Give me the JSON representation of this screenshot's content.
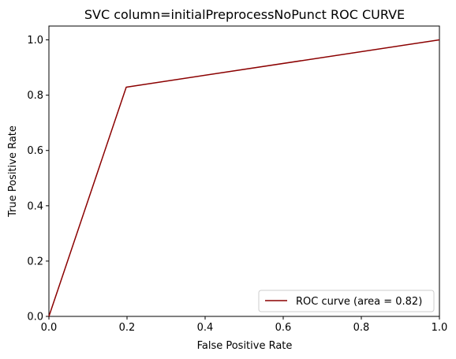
{
  "chart_data": {
    "type": "line",
    "title": "SVC column=initialPreprocessNoPunct ROC CURVE",
    "xlabel": "False Positive Rate",
    "ylabel": "True Positive Rate",
    "xlim": [
      0.0,
      1.0
    ],
    "ylim": [
      0.0,
      1.05
    ],
    "xticks": [
      0.0,
      0.2,
      0.4,
      0.6,
      0.8,
      1.0
    ],
    "xtick_labels": [
      "0.0",
      "0.2",
      "0.4",
      "0.6",
      "0.8",
      "1.0"
    ],
    "yticks": [
      0.0,
      0.2,
      0.4,
      0.6,
      0.8,
      1.0
    ],
    "ytick_labels": [
      "0.0",
      "0.2",
      "0.4",
      "0.6",
      "0.8",
      "1.0"
    ],
    "grid": false,
    "legend_position": "lower-right",
    "series": [
      {
        "name": "ROC curve (area = 0.82)",
        "color": "#8b0000",
        "x": [
          0.0,
          0.198,
          1.0
        ],
        "y": [
          0.0,
          0.829,
          1.0
        ]
      }
    ]
  }
}
